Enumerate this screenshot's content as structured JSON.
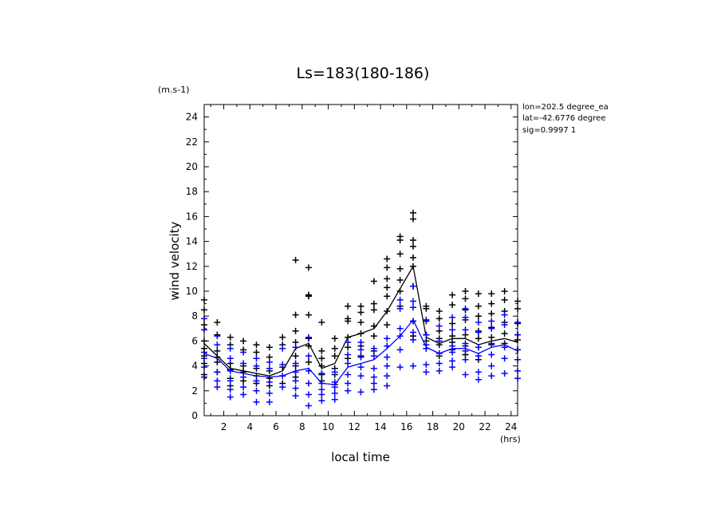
{
  "chart_data": {
    "type": "scatter",
    "title": "Ls=183(180-186)",
    "xlabel": "local time",
    "ylabel": "wind velocity",
    "x_unit": "(hrs)",
    "y_unit": "(m.s-1)",
    "xlim": [
      0.5,
      24.5
    ],
    "ylim": [
      0,
      25
    ],
    "xticks": [
      "2",
      "4",
      "6",
      "8",
      "10",
      "12",
      "14",
      "16",
      "18",
      "20",
      "22",
      "24"
    ],
    "yticks": [
      "0",
      "2",
      "4",
      "6",
      "8",
      "10",
      "12",
      "14",
      "16",
      "18",
      "20",
      "22",
      "24"
    ],
    "info_lines": [
      "lon=202.5 degree_ea",
      "lat=-42.6776 degree",
      "sig=0.9997 1"
    ],
    "hours": [
      0.5,
      1.5,
      2.5,
      3.5,
      4.5,
      5.5,
      6.5,
      7.5,
      8.5,
      9.5,
      10.5,
      11.5,
      12.5,
      13.5,
      14.5,
      15.5,
      16.5,
      17.5,
      18.5,
      19.5,
      20.5,
      21.5,
      22.5,
      23.5,
      24.5
    ],
    "series": [
      {
        "color": "#000000",
        "mean": [
          5.8,
          4.8,
          3.8,
          3.6,
          3.4,
          3.2,
          3.6,
          5.4,
          5.8,
          3.8,
          4.2,
          6.3,
          6.6,
          7.0,
          8.4,
          10.2,
          12.0,
          6.3,
          5.8,
          6.2,
          6.2,
          5.7,
          6.0,
          6.2,
          5.9
        ],
        "points": [
          [
            9.3,
            8.5,
            7.3,
            6.0,
            5.4,
            4.8,
            4.2,
            3.3
          ],
          [
            7.5,
            6.5,
            5.2,
            4.7,
            4.3,
            3.5
          ],
          [
            6.3,
            5.7,
            4.2,
            3.7,
            3.0,
            2.4
          ],
          [
            6.0,
            5.3,
            4.0,
            3.5,
            2.8
          ],
          [
            5.7,
            5.1,
            3.8,
            3.2,
            2.6
          ],
          [
            5.5,
            4.7,
            3.6,
            3.0,
            2.4
          ],
          [
            6.3,
            5.7,
            3.9,
            3.2,
            2.6
          ],
          [
            12.5,
            8.1,
            6.8,
            5.9,
            4.8,
            4.0,
            3.1
          ],
          [
            11.9,
            9.7,
            9.6,
            8.1,
            6.2,
            5.6,
            4.3
          ],
          [
            7.5,
            5.2,
            4.6,
            4.0,
            3.3,
            2.8
          ],
          [
            6.2,
            5.4,
            4.8,
            3.8,
            3.3,
            2.5
          ],
          [
            8.8,
            7.8,
            7.6,
            6.3,
            5.5,
            4.6
          ],
          [
            8.8,
            8.3,
            7.5,
            6.6,
            5.6,
            4.8
          ],
          [
            10.8,
            9.0,
            8.5,
            7.2,
            6.4,
            5.2
          ],
          [
            12.6,
            11.9,
            11.0,
            10.3,
            9.6,
            8.4,
            7.3
          ],
          [
            14.4,
            14.1,
            13.0,
            11.8,
            10.9,
            10.0,
            8.8
          ],
          [
            16.3,
            15.8,
            14.1,
            13.6,
            12.7,
            12.0,
            10.4,
            7.6,
            6.4
          ],
          [
            8.8,
            8.6,
            7.6,
            6.5,
            6.0,
            5.4
          ],
          [
            8.4,
            7.8,
            6.8,
            6.2,
            5.7,
            4.8
          ],
          [
            9.7,
            8.9,
            7.4,
            6.4,
            5.9,
            5.3
          ],
          [
            10.0,
            9.4,
            8.5,
            7.7,
            6.5,
            5.6,
            4.9
          ],
          [
            9.8,
            8.8,
            8.0,
            6.8,
            6.2,
            5.5,
            4.5
          ],
          [
            9.8,
            9.0,
            8.2,
            7.1,
            6.3,
            5.7
          ],
          [
            10.0,
            9.3,
            8.4,
            7.5,
            6.6,
            5.8
          ],
          [
            9.2,
            8.6,
            7.4,
            6.5,
            6.1,
            5.3
          ]
        ]
      },
      {
        "color": "#0000ff",
        "mean": [
          5.0,
          4.6,
          3.6,
          3.4,
          3.2,
          3.1,
          3.2,
          3.6,
          3.8,
          2.6,
          2.5,
          3.9,
          4.2,
          4.5,
          5.4,
          6.4,
          7.7,
          5.5,
          5.0,
          5.4,
          5.4,
          5.0,
          5.5,
          5.7,
          5.2
        ],
        "points": [
          [
            7.8,
            6.9,
            5.1,
            4.6,
            3.9,
            3.1
          ],
          [
            6.4,
            5.7,
            3.5,
            2.8,
            2.3
          ],
          [
            5.4,
            4.6,
            3.6,
            2.8,
            2.1,
            1.5
          ],
          [
            5.1,
            4.2,
            3.1,
            2.3,
            1.7
          ],
          [
            4.6,
            4.0,
            2.8,
            2.0,
            1.1
          ],
          [
            4.3,
            3.8,
            2.7,
            1.8,
            1.1
          ],
          [
            5.4,
            4.1,
            3.2,
            2.3
          ],
          [
            5.5,
            4.2,
            3.5,
            2.8,
            2.2,
            1.6
          ],
          [
            6.3,
            4.8,
            3.6,
            2.6,
            1.7,
            0.8
          ],
          [
            3.4,
            2.6,
            2.1,
            1.7,
            1.2
          ],
          [
            3.5,
            2.7,
            2.3,
            1.8,
            1.3
          ],
          [
            5.9,
            4.9,
            4.2,
            3.3,
            2.6,
            2.0
          ],
          [
            5.9,
            5.3,
            4.7,
            3.9,
            3.2,
            1.9
          ],
          [
            5.4,
            4.8,
            3.8,
            3.1,
            2.6,
            2.1
          ],
          [
            6.2,
            5.6,
            4.7,
            4.0,
            3.2,
            2.4
          ],
          [
            9.3,
            8.6,
            7.0,
            6.4,
            5.3,
            3.9
          ],
          [
            10.4,
            9.2,
            8.7,
            7.6,
            6.7,
            6.1,
            4.0
          ],
          [
            7.7,
            6.5,
            5.7,
            5.4,
            4.1,
            3.5
          ],
          [
            7.2,
            6.0,
            5.0,
            4.2,
            3.6
          ],
          [
            7.9,
            6.9,
            5.6,
            5.1,
            4.4,
            3.9
          ],
          [
            8.6,
            7.9,
            6.9,
            5.8,
            5.2,
            4.5,
            3.3
          ],
          [
            7.5,
            6.7,
            5.5,
            4.8,
            3.5,
            2.9
          ],
          [
            7.6,
            7.0,
            5.8,
            4.9,
            4.0,
            3.2
          ],
          [
            8.1,
            7.3,
            5.5,
            4.6,
            3.4
          ],
          [
            7.5,
            6.5,
            5.3,
            4.5,
            3.6,
            3.0
          ]
        ]
      }
    ]
  }
}
